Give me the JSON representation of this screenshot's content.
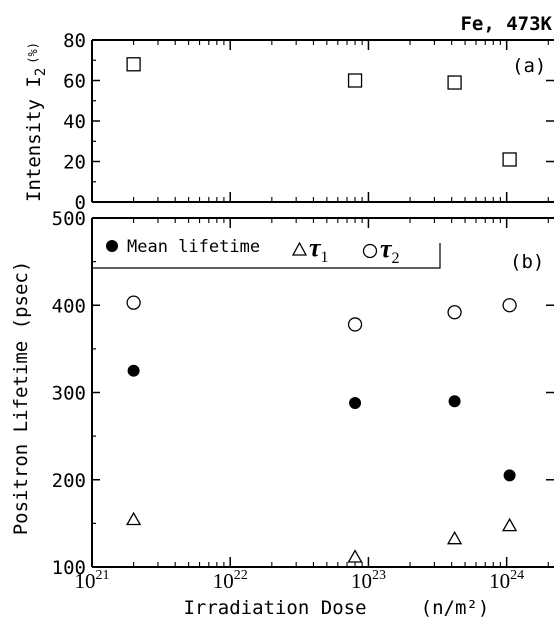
{
  "figure": {
    "corner_label": "Fe, 473K",
    "xlabel": "Irradiation Dose",
    "xunit": "(n/m²)",
    "xticks": [
      {
        "value": 1e+21,
        "base": "10",
        "exp": "21"
      },
      {
        "value": 1e+22,
        "base": "10",
        "exp": "22"
      },
      {
        "value": 1e+23,
        "base": "10",
        "exp": "23"
      },
      {
        "value": 1e+24,
        "base": "10",
        "exp": "24"
      }
    ]
  },
  "chart_data": [
    {
      "type": "scatter",
      "panel_label": "(a)",
      "ylabel": "Intensity I",
      "ylabel_sub": "2",
      "ylabel_unit": "(%)",
      "x_scale": "log",
      "xlim": [
        1e+21,
        2.2e+24
      ],
      "ylim": [
        0,
        80
      ],
      "yticks": [
        0,
        20,
        40,
        60,
        80
      ],
      "series": [
        {
          "marker": "open-square",
          "points": [
            [
              2e+21,
              68
            ],
            [
              8e+22,
              60
            ],
            [
              4.2e+23,
              59
            ],
            [
              1.05e+24,
              21
            ]
          ]
        }
      ]
    },
    {
      "type": "scatter",
      "panel_label": "(b)",
      "ylabel": "Positron Lifetime (psec)",
      "x_scale": "log",
      "xlim": [
        1e+21,
        2.2e+24
      ],
      "ylim": [
        100,
        500
      ],
      "yticks": [
        100,
        200,
        300,
        400,
        500
      ],
      "legend": {
        "position": "top-left",
        "items": [
          {
            "marker": "filled-circle",
            "label": "Mean lifetime"
          },
          {
            "marker": "open-triangle",
            "label": "τ",
            "sub": "1"
          },
          {
            "marker": "open-circle",
            "label": "τ",
            "sub": "2"
          }
        ]
      },
      "series": [
        {
          "marker": "filled-circle",
          "points": [
            [
              2e+21,
              325
            ],
            [
              8e+22,
              288
            ],
            [
              4.2e+23,
              290
            ],
            [
              1.05e+24,
              205
            ]
          ]
        },
        {
          "marker": "open-triangle",
          "points": [
            [
              2e+21,
              155
            ],
            [
              8e+22,
              112
            ],
            [
              4.2e+23,
              133
            ],
            [
              1.05e+24,
              148
            ]
          ]
        },
        {
          "marker": "open-circle",
          "points": [
            [
              2e+21,
              403
            ],
            [
              8e+22,
              378
            ],
            [
              4.2e+23,
              392
            ],
            [
              1.05e+24,
              400
            ]
          ]
        }
      ]
    }
  ]
}
